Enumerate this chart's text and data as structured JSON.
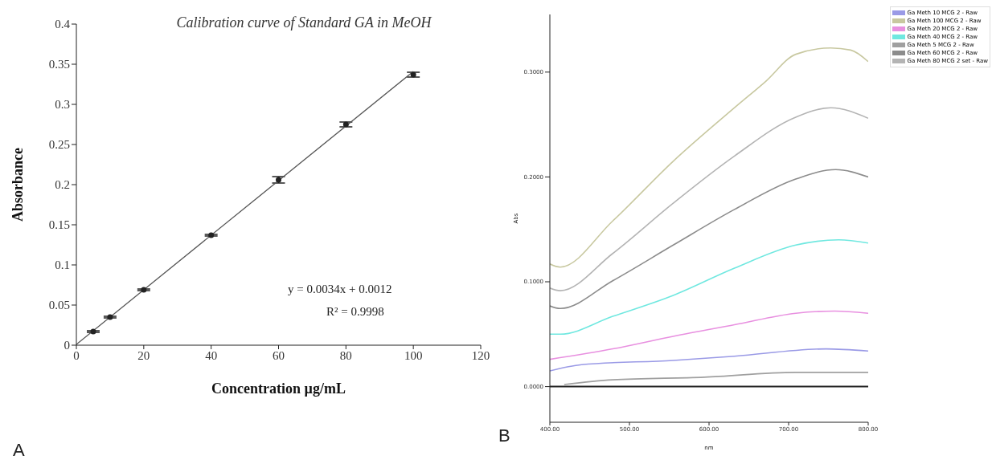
{
  "chart_data": [
    {
      "type": "scatter",
      "title": "Calibration curve of Standard GA in MeOH",
      "xlabel": "Concentration  µg/mL",
      "ylabel": "Absorbance",
      "x": [
        5,
        10,
        20,
        40,
        60,
        80,
        100
      ],
      "series": [
        {
          "color": "#222222",
          "marker": "circle",
          "values": [
            0.017,
            0.035,
            0.069,
            0.137,
            0.206,
            0.275,
            0.337
          ],
          "errors": [
            0.001,
            0.001,
            0.001,
            0.001,
            0.004,
            0.003,
            0.003
          ]
        },
        {
          "type": "line",
          "color": "#555555",
          "marker": "none",
          "x": [
            0,
            100
          ],
          "values": [
            0.001,
            0.341
          ]
        }
      ],
      "xlim": [
        0,
        120
      ],
      "xticks": [
        0,
        20,
        40,
        60,
        80,
        100,
        120
      ],
      "ylim": [
        0,
        0.4
      ],
      "yticks": [
        0,
        0.05,
        0.1,
        0.15,
        0.2,
        0.25,
        0.3,
        0.35,
        0.4
      ],
      "grid": false,
      "legend": false,
      "annotations": [
        "y = 0.0034x  + 0.0012",
        "R² = 0.9998",
        "A"
      ]
    },
    {
      "type": "line",
      "xlabel": "nm",
      "ylabel": "Abs",
      "series": [
        {
          "name": "Ga Meth 10 MCG 2 - Raw",
          "color": "#9a9ae6",
          "x": [
            400,
            440,
            555,
            632,
            747,
            800
          ],
          "values": [
            0.015,
            0.021,
            0.025,
            0.029,
            0.036,
            0.034
          ]
        },
        {
          "name": "Ga Meth 100 MCG 2 - Raw",
          "color": "#c8c8a0",
          "x": [
            400,
            413,
            479,
            555,
            632,
            671,
            709,
            753,
            778,
            800
          ],
          "values": [
            0.117,
            0.114,
            0.158,
            0.215,
            0.266,
            0.291,
            0.317,
            0.323,
            0.321,
            0.31
          ]
        },
        {
          "name": "Ga Meth 20 MCG 2 - Raw",
          "color": "#e890e0",
          "x": [
            400,
            479,
            555,
            632,
            709,
            758,
            800
          ],
          "values": [
            0.026,
            0.036,
            0.048,
            0.059,
            0.07,
            0.072,
            0.07
          ]
        },
        {
          "name": "Ga Meth 40 MCG 2 - Raw",
          "color": "#70e8e0",
          "x": [
            400,
            413,
            479,
            555,
            632,
            709,
            763,
            800
          ],
          "values": [
            0.05,
            0.05,
            0.067,
            0.087,
            0.113,
            0.135,
            0.14,
            0.137
          ]
        },
        {
          "name": "Ga Meth 5 MCG 2 - Raw",
          "color": "#a0a0a0",
          "x": [
            418,
            479,
            594,
            709,
            800
          ],
          "values": [
            0.002,
            0.0065,
            0.009,
            0.0136,
            0.0136
          ]
        },
        {
          "name": "Ga Meth 60 MCG 2 - Raw",
          "color": "#8c8c8c",
          "x": [
            400,
            413,
            479,
            555,
            632,
            709,
            759,
            800
          ],
          "values": [
            0.077,
            0.0745,
            0.101,
            0.135,
            0.169,
            0.198,
            0.207,
            0.2
          ]
        },
        {
          "name": "Ga Meth 80 MCG 2 set - Raw",
          "color": "#b4b4b4",
          "x": [
            400,
            413,
            479,
            555,
            632,
            709,
            753,
            800
          ],
          "values": [
            0.094,
            0.0915,
            0.127,
            0.175,
            0.22,
            0.257,
            0.266,
            0.256
          ]
        }
      ],
      "xlim": [
        400,
        800
      ],
      "xticks": [
        {
          "value": 400,
          "label": "400.00"
        },
        {
          "value": 500,
          "label": "500.00"
        },
        {
          "value": 600,
          "label": "600.00"
        },
        {
          "value": 700,
          "label": "700.00"
        },
        {
          "value": 800,
          "label": "800.00"
        }
      ],
      "ylim": [
        -0.034,
        0.355
      ],
      "yticks": [
        {
          "value": 0,
          "label": "0.0000"
        },
        {
          "value": 0.1,
          "label": "0.1000"
        },
        {
          "value": 0.2,
          "label": "0.2000"
        },
        {
          "value": 0.3,
          "label": "0.3000"
        }
      ],
      "ref_lines": [
        {
          "axis": "y",
          "value": 0,
          "color": "#222222"
        }
      ],
      "marker": "none",
      "grid": false,
      "legend": "top right",
      "annotations": [
        "B"
      ]
    }
  ]
}
